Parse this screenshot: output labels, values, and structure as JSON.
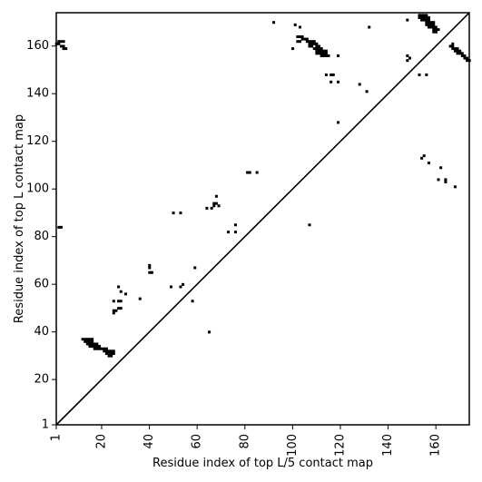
{
  "chart_data": {
    "type": "heatmap",
    "title": "",
    "xlabel": "Residue index of top L/5 contact map",
    "ylabel": "Residue index of top L contact map",
    "xlim": [
      1,
      174
    ],
    "ylim": [
      1,
      174
    ],
    "x_ticks": [
      1,
      20,
      40,
      60,
      80,
      100,
      120,
      140,
      160
    ],
    "y_ticks": [
      1,
      20,
      40,
      60,
      80,
      100,
      120,
      140,
      160
    ],
    "diagonal": {
      "from": [
        1,
        1
      ],
      "to": [
        174,
        174
      ]
    },
    "grid": false,
    "colors": {
      "contact": "#000000",
      "background": "#ffffff"
    },
    "upper_triangle_contacts": [
      [
        2,
        84
      ],
      [
        3,
        84
      ],
      [
        1,
        161
      ],
      [
        2,
        161
      ],
      [
        2,
        162
      ],
      [
        3,
        162
      ],
      [
        4,
        162
      ],
      [
        3,
        160
      ],
      [
        4,
        160
      ],
      [
        4,
        159
      ],
      [
        5,
        159
      ],
      [
        12,
        37
      ],
      [
        13,
        37
      ],
      [
        14,
        37
      ],
      [
        15,
        37
      ],
      [
        16,
        37
      ],
      [
        13,
        36
      ],
      [
        14,
        36
      ],
      [
        15,
        36
      ],
      [
        16,
        36
      ],
      [
        14,
        35
      ],
      [
        15,
        35
      ],
      [
        16,
        35
      ],
      [
        17,
        35
      ],
      [
        18,
        35
      ],
      [
        15,
        34
      ],
      [
        16,
        34
      ],
      [
        17,
        34
      ],
      [
        18,
        34
      ],
      [
        19,
        34
      ],
      [
        17,
        33
      ],
      [
        18,
        33
      ],
      [
        19,
        33
      ],
      [
        20,
        33
      ],
      [
        21,
        33
      ],
      [
        22,
        33
      ],
      [
        21,
        32
      ],
      [
        22,
        32
      ],
      [
        23,
        32
      ],
      [
        24,
        32
      ],
      [
        25,
        32
      ],
      [
        22,
        31
      ],
      [
        23,
        31
      ],
      [
        24,
        31
      ],
      [
        25,
        31
      ],
      [
        23,
        30
      ],
      [
        24,
        30
      ],
      [
        25,
        48
      ],
      [
        25,
        49
      ],
      [
        26,
        49
      ],
      [
        27,
        50
      ],
      [
        28,
        50
      ],
      [
        25,
        53
      ],
      [
        27,
        53
      ],
      [
        28,
        53
      ],
      [
        28,
        57
      ],
      [
        27,
        59
      ],
      [
        30,
        56
      ],
      [
        36,
        54
      ],
      [
        40,
        65
      ],
      [
        41,
        65
      ],
      [
        40,
        67
      ],
      [
        40,
        68
      ],
      [
        50,
        90
      ],
      [
        53,
        90
      ],
      [
        53,
        59
      ],
      [
        54,
        60
      ],
      [
        49,
        59
      ],
      [
        58,
        53
      ],
      [
        59,
        67
      ],
      [
        64,
        92
      ],
      [
        66,
        92
      ],
      [
        67,
        93
      ],
      [
        67,
        94
      ],
      [
        68,
        94
      ],
      [
        69,
        93
      ],
      [
        68,
        97
      ],
      [
        73,
        82
      ],
      [
        76,
        82
      ],
      [
        76,
        85
      ],
      [
        81,
        107
      ],
      [
        82,
        107
      ],
      [
        85,
        107
      ],
      [
        65,
        40
      ],
      [
        92,
        170
      ],
      [
        100,
        159
      ],
      [
        101,
        169
      ],
      [
        103,
        168
      ],
      [
        102,
        164
      ],
      [
        103,
        164
      ],
      [
        104,
        164
      ],
      [
        102,
        162
      ],
      [
        103,
        162
      ],
      [
        104,
        163
      ],
      [
        105,
        163
      ],
      [
        106,
        163
      ],
      [
        106,
        162
      ],
      [
        107,
        162
      ],
      [
        108,
        162
      ],
      [
        109,
        162
      ],
      [
        107,
        161
      ],
      [
        108,
        161
      ],
      [
        109,
        161
      ],
      [
        110,
        161
      ],
      [
        107,
        160
      ],
      [
        108,
        160
      ],
      [
        110,
        160
      ],
      [
        111,
        160
      ],
      [
        109,
        159
      ],
      [
        110,
        159
      ],
      [
        111,
        159
      ],
      [
        112,
        159
      ],
      [
        110,
        158
      ],
      [
        111,
        158
      ],
      [
        112,
        158
      ],
      [
        113,
        158
      ],
      [
        114,
        158
      ],
      [
        110,
        157
      ],
      [
        111,
        157
      ],
      [
        112,
        157
      ],
      [
        113,
        157
      ],
      [
        114,
        157
      ],
      [
        112,
        156
      ],
      [
        113,
        156
      ],
      [
        114,
        156
      ],
      [
        115,
        156
      ],
      [
        107,
        85
      ],
      [
        114,
        148
      ],
      [
        116,
        148
      ],
      [
        117,
        148
      ],
      [
        116,
        145
      ],
      [
        119,
        145
      ],
      [
        119,
        156
      ],
      [
        119,
        128
      ],
      [
        128,
        144
      ],
      [
        131,
        141
      ],
      [
        132,
        168
      ],
      [
        148,
        171
      ],
      [
        148,
        154
      ],
      [
        148,
        156
      ],
      [
        149,
        155
      ],
      [
        153,
        148
      ],
      [
        156,
        148
      ],
      [
        154,
        113
      ],
      [
        155,
        114
      ],
      [
        157,
        111
      ],
      [
        161,
        104
      ],
      [
        162,
        109
      ],
      [
        164,
        104
      ],
      [
        164,
        103
      ],
      [
        168,
        101
      ],
      [
        153,
        173
      ],
      [
        154,
        173
      ],
      [
        155,
        173
      ],
      [
        156,
        173
      ],
      [
        153,
        172
      ],
      [
        154,
        172
      ],
      [
        155,
        172
      ],
      [
        156,
        172
      ],
      [
        157,
        172
      ],
      [
        154,
        171
      ],
      [
        155,
        171
      ],
      [
        156,
        171
      ],
      [
        157,
        171
      ],
      [
        156,
        170
      ],
      [
        157,
        170
      ],
      [
        158,
        170
      ],
      [
        159,
        170
      ],
      [
        156,
        169
      ],
      [
        157,
        169
      ],
      [
        158,
        169
      ],
      [
        159,
        169
      ],
      [
        157,
        168
      ],
      [
        158,
        168
      ],
      [
        159,
        168
      ],
      [
        160,
        168
      ],
      [
        159,
        167
      ],
      [
        160,
        167
      ],
      [
        161,
        167
      ],
      [
        159,
        166
      ],
      [
        160,
        166
      ],
      [
        166,
        160
      ],
      [
        167,
        161
      ],
      [
        167,
        160
      ],
      [
        167,
        159
      ],
      [
        168,
        159
      ],
      [
        169,
        159
      ],
      [
        168,
        158
      ],
      [
        169,
        158
      ],
      [
        170,
        158
      ],
      [
        169,
        157
      ],
      [
        170,
        157
      ],
      [
        171,
        157
      ],
      [
        171,
        156
      ],
      [
        172,
        156
      ],
      [
        172,
        155
      ],
      [
        173,
        155
      ],
      [
        173,
        154
      ],
      [
        174,
        154
      ]
    ]
  }
}
